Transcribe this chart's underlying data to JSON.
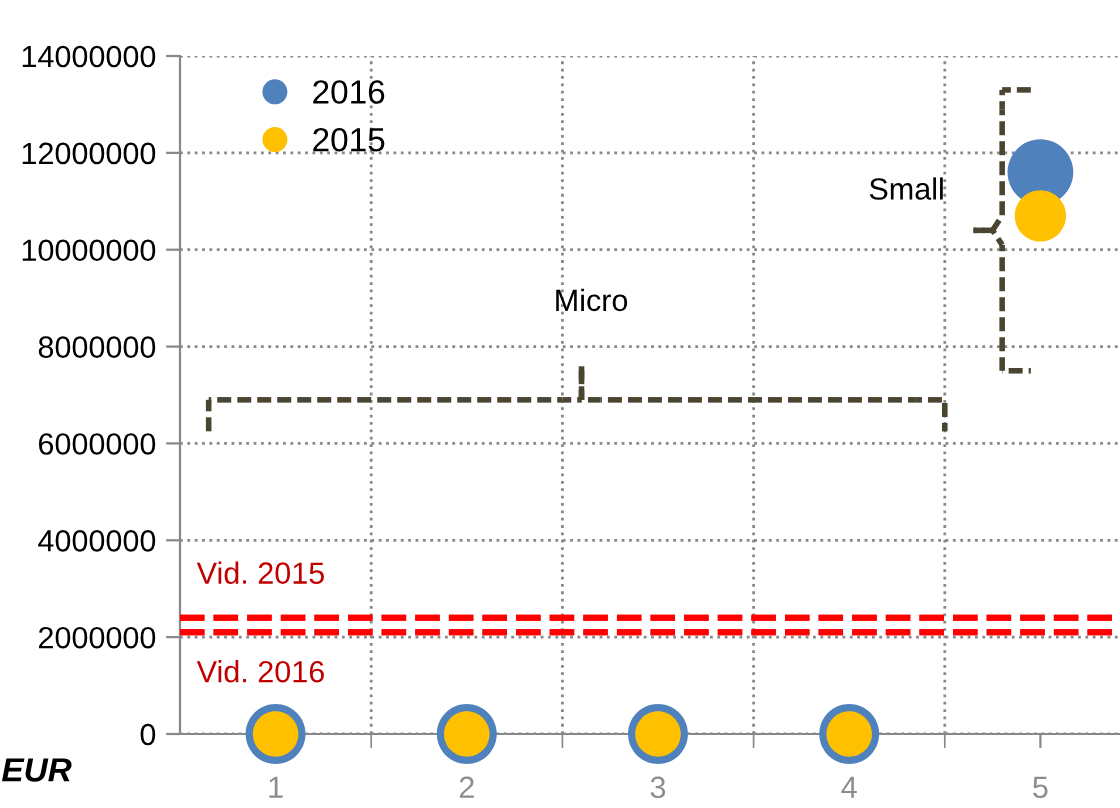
{
  "chart_data": {
    "type": "bubble",
    "ylabel": "EUR",
    "categories": [
      "1",
      "2",
      "3",
      "4",
      "5"
    ],
    "series": [
      {
        "name": "2016",
        "color": "#4f81bd",
        "values": [
          0,
          0,
          0,
          0,
          11600000
        ],
        "sizes": [
          0.83,
          0.83,
          0.83,
          0.83,
          1
        ]
      },
      {
        "name": "2015",
        "color": "#ffc000",
        "values": [
          0,
          0,
          0,
          0,
          10700000
        ],
        "sizes": [
          0.48,
          0.48,
          0.48,
          0.48,
          0.61
        ]
      }
    ],
    "ylim": [
      0,
      14000000
    ],
    "yticks": [
      0,
      2000000,
      4000000,
      6000000,
      8000000,
      10000000,
      12000000,
      14000000
    ],
    "ref_lines": [
      {
        "axis": "y",
        "value": 2400000,
        "label": "Vid. 2015",
        "color": "#ff0000",
        "line_style": "dashed"
      },
      {
        "axis": "y",
        "value": 2100000,
        "label": "Vid. 2016",
        "color": "#ff0000",
        "line_style": "dashed"
      }
    ],
    "annotations": [
      "Micro",
      "Small"
    ],
    "grid": true,
    "legend": "top left",
    "marker": "circle"
  }
}
